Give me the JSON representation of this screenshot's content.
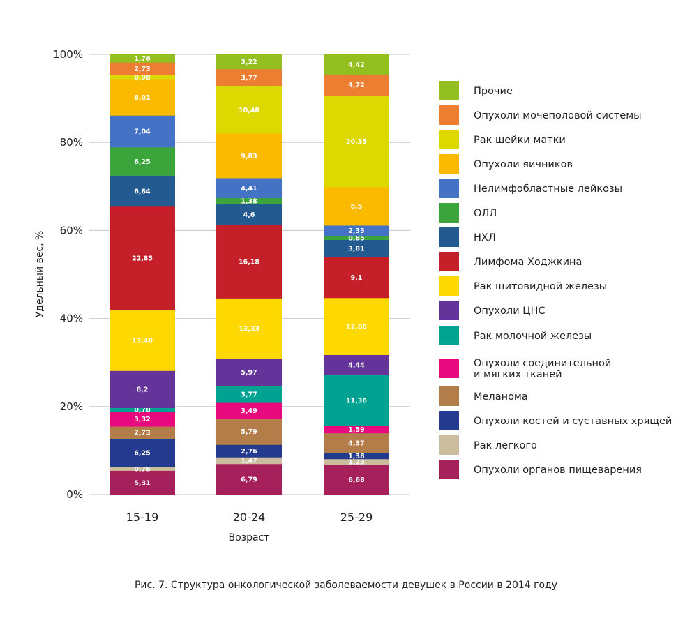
{
  "chart_data": {
    "type": "bar",
    "stacked": true,
    "percent": true,
    "title": "",
    "caption": "Рис. 7. Структура онкологической заболеваемости девушек в России в 2014 году",
    "xlabel": "Возраст",
    "ylabel": "Удельный вес, %",
    "ylim": [
      0,
      100
    ],
    "yticks": [
      "0%",
      "20%",
      "40%",
      "60%",
      "80%",
      "100%"
    ],
    "grid": true,
    "legend_position": "right",
    "categories": [
      "15-19",
      "20-24",
      "25-29"
    ],
    "series": [
      {
        "name": "Опухоли органов пищеварения",
        "color": "#a6215c",
        "values": [
          5.31,
          6.79,
          6.68
        ],
        "labels": [
          "5,31",
          "6,79",
          "6,68"
        ]
      },
      {
        "name": "Рак легкого",
        "color": "#cbbd9e",
        "values": [
          0.78,
          1.47,
          1.23
        ],
        "labels": [
          "0,78",
          "1,47",
          "1,23"
        ]
      },
      {
        "name": "Опухоли костей и суставных хрящей",
        "color": "#233a8e",
        "values": [
          6.25,
          2.76,
          1.38
        ],
        "labels": [
          "6,25",
          "2,76",
          "1,38"
        ]
      },
      {
        "name": "Меланома",
        "color": "#b37d49",
        "values": [
          2.73,
          5.79,
          4.37
        ],
        "labels": [
          "2,73",
          "5,79",
          "4,37"
        ]
      },
      {
        "name": "Опухоли соединительной и мягких тканей",
        "color": "#e8097f",
        "values": [
          3.32,
          3.49,
          1.59
        ],
        "labels": [
          "3,32",
          "3,49",
          "1,59"
        ]
      },
      {
        "name": "Рак молочной железы",
        "color": "#00a391",
        "values": [
          0.78,
          3.77,
          11.36
        ],
        "labels": [
          "0,78",
          "3,77",
          "11,36"
        ]
      },
      {
        "name": "Опухоли ЦНС",
        "color": "#64349a",
        "values": [
          8.2,
          5.97,
          4.44
        ],
        "labels": [
          "8,2",
          "5,97",
          "4,44"
        ]
      },
      {
        "name": "Рак щитовидной железы",
        "color": "#ffd800",
        "values": [
          13.48,
          13.33,
          12.66
        ],
        "labels": [
          "13,48",
          "13,33",
          "12,66"
        ]
      },
      {
        "name": "Лимфома Ходжкина",
        "color": "#c5202a",
        "values": [
          22.85,
          16.18,
          9.1
        ],
        "labels": [
          "22,85",
          "16,18",
          "9,1"
        ]
      },
      {
        "name": "НХЛ",
        "color": "#235a8f",
        "values": [
          6.84,
          4.6,
          3.81
        ],
        "labels": [
          "6,84",
          "4,6",
          "3,81"
        ]
      },
      {
        "name": "ОЛЛ",
        "color": "#3ba53b",
        "values": [
          6.25,
          1.38,
          0.85
        ],
        "labels": [
          "6,25",
          "1,38",
          "0,85"
        ]
      },
      {
        "name": "Нелимфобластные лейкозы",
        "color": "#4472c4",
        "values": [
          7.04,
          4.41,
          2.33
        ],
        "labels": [
          "7,04",
          "4,41",
          "2,33"
        ]
      },
      {
        "name": "Опухоли яичников",
        "color": "#fbb900",
        "values": [
          8.01,
          9.83,
          8.5
        ],
        "labels": [
          "8,01",
          "9,83",
          "8,5"
        ]
      },
      {
        "name": "Рак шейки матки",
        "color": "#dcd800",
        "values": [
          0.98,
          10.48,
          20.35
        ],
        "labels": [
          "0,98",
          "10,48",
          "20,35"
        ]
      },
      {
        "name": "Опухоли мочеполовой системы",
        "color": "#ed7d31",
        "values": [
          2.73,
          3.77,
          4.72
        ],
        "labels": [
          "2,73",
          "3,77",
          "4,72"
        ]
      },
      {
        "name": "Прочие",
        "color": "#93c020",
        "values": [
          1.76,
          3.22,
          4.42
        ],
        "labels": [
          "1,76",
          "3,22",
          "4,42"
        ]
      }
    ]
  }
}
